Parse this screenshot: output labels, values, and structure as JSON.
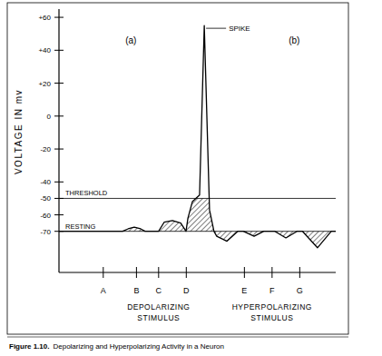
{
  "chart_data": {
    "type": "line",
    "title": "Depolarizing and Hyperpolarizing Activity in a Neuron",
    "figure_label": "Figure 1.10.",
    "y_label": "VOLTAGE IN mv",
    "panel_labels": [
      "(a)",
      "(b)"
    ],
    "spike_label": "SPIKE",
    "stimulus_labels": [
      [
        "DEPOLARIZING",
        "STIMULUS"
      ],
      [
        "HYPERPOLARIZING",
        "STIMULUS"
      ]
    ],
    "reference_lines": [
      {
        "label": "THRESHOLD",
        "value": -50
      },
      {
        "label": "RESTING",
        "value": -70
      }
    ],
    "x": [
      0,
      23,
      25,
      27.2,
      29.5,
      31.1,
      36,
      38,
      41,
      44,
      45.9,
      46.6,
      48.2,
      50.8,
      52.5,
      54.4,
      56,
      57,
      60.7,
      64.6,
      66.6,
      70.5,
      74,
      78,
      82,
      86,
      88,
      93.4,
      98.4,
      100
    ],
    "series": [
      {
        "color": "#000000",
        "values": [
          -70,
          -70,
          -68.5,
          -67.5,
          -68.5,
          -70,
          -70,
          -64.5,
          -63.5,
          -65,
          -70,
          -62,
          -52,
          -48,
          55,
          -57,
          -70,
          -73,
          -76,
          -70,
          -70,
          -73,
          -70,
          -70,
          -74,
          -70,
          -70,
          -80,
          -70,
          -70
        ]
      }
    ],
    "xlim": [
      0,
      100
    ],
    "ylim": [
      -95,
      65
    ],
    "xticks": [
      {
        "value": 16,
        "label": "A"
      },
      {
        "value": 28,
        "label": "B"
      },
      {
        "value": 36,
        "label": "C"
      },
      {
        "value": 46,
        "label": "D"
      },
      {
        "value": 67,
        "label": "E"
      },
      {
        "value": 77,
        "label": "F"
      },
      {
        "value": 87,
        "label": "G"
      }
    ],
    "yticks": [
      {
        "value": 60,
        "label": "+60"
      },
      {
        "value": 40,
        "label": "+40"
      },
      {
        "value": 20,
        "label": "+20"
      },
      0,
      -20,
      -40,
      -50,
      -60,
      -70
    ],
    "grid": false
  }
}
